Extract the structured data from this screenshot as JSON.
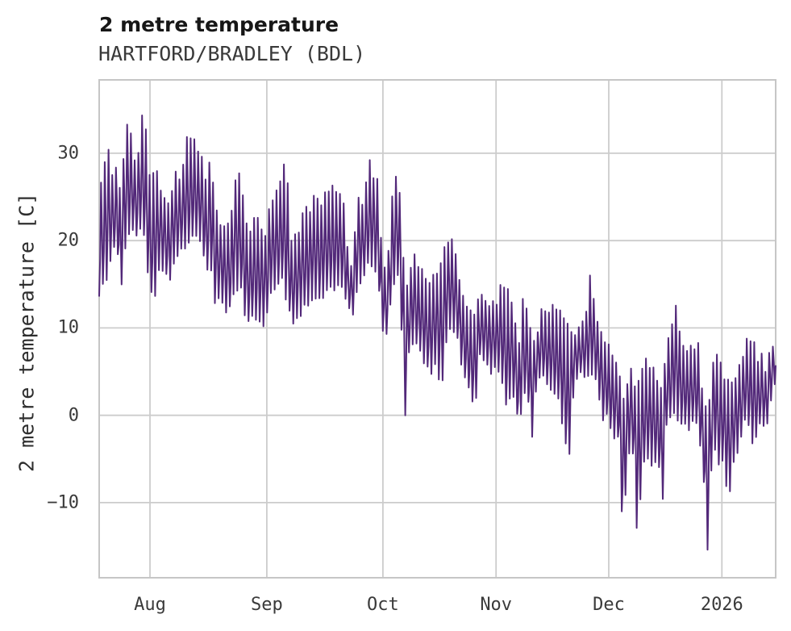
{
  "header": {
    "title": "2 metre temperature",
    "subtitle": "HARTFORD/BRADLEY (BDL)"
  },
  "colors": {
    "line": "#522879",
    "grid": "#cccccc",
    "spine": "#c6c6c6",
    "text": "#3a3a3a",
    "title_text": "#171717",
    "background": "#ffffff"
  },
  "chart_data": {
    "type": "line",
    "title": "2 metre temperature",
    "subtitle": "HARTFORD/BRADLEY (BDL)",
    "xlabel": "",
    "ylabel": "2 metre temperature [C]",
    "x_range_days": 181.2,
    "x_start": "mid-July 2025",
    "x_end": "mid-January 2026",
    "x_ticks": [
      {
        "label": "Aug",
        "day": 13.6
      },
      {
        "label": "Sep",
        "day": 44.9
      },
      {
        "label": "Oct",
        "day": 76.0
      },
      {
        "label": "Nov",
        "day": 106.3
      },
      {
        "label": "Dec",
        "day": 136.5
      },
      {
        "label": "2026",
        "day": 166.8
      }
    ],
    "y_ticks": [
      {
        "label": "−10",
        "value": -10
      },
      {
        "label": "0",
        "value": 0
      },
      {
        "label": "10",
        "value": 10
      },
      {
        "label": "20",
        "value": 20
      },
      {
        "label": "30",
        "value": 30
      }
    ],
    "ylim": [
      -18.6,
      38.4
    ],
    "grid": true,
    "legend_position": "none",
    "diurnal_pattern": [
      -1,
      -0.38,
      1,
      0.08
    ],
    "noise": [
      0.84,
      0.31,
      0.95,
      0.52,
      0.12,
      0.77,
      0.64,
      0.25,
      0.9,
      0.45,
      0.68,
      0.05,
      0.58,
      0.99,
      0.37,
      0.73,
      0.2,
      0.86,
      0.5,
      0.08,
      0.66,
      0.93,
      0.29,
      0.75,
      0.41,
      0.61,
      0.15,
      0.88,
      0.55,
      0.02,
      0.7,
      0.97,
      0.34,
      0.8,
      0.47,
      0.23,
      0.6
    ],
    "series": [
      {
        "name": "2 metre temperature",
        "color": "#522879",
        "points_per_day": 4,
        "envelope_day_low_high": [
          [
            0,
            13.5,
            25
          ],
          [
            1.3,
            14,
            29.5
          ],
          [
            2.6,
            16.5,
            31.2
          ],
          [
            3.8,
            18.5,
            27.5
          ],
          [
            4.9,
            19,
            30
          ],
          [
            5.6,
            12.5,
            27
          ],
          [
            7.0,
            18.5,
            33.4
          ],
          [
            8.1,
            20,
            34.5
          ],
          [
            9.2,
            21,
            31
          ],
          [
            10.2,
            20,
            28
          ],
          [
            11.2,
            20.5,
            36
          ],
          [
            12.2,
            19,
            34.4
          ],
          [
            13.0,
            16,
            30
          ],
          [
            13.9,
            13,
            26
          ],
          [
            14.9,
            13,
            29.2
          ],
          [
            16,
            16.5,
            28.3
          ],
          [
            17.4,
            16.5,
            25.2
          ],
          [
            18.5,
            14.7,
            24.5
          ],
          [
            20,
            17,
            28.3
          ],
          [
            21.6,
            18.5,
            27.5
          ],
          [
            23.4,
            18.5,
            32.5
          ],
          [
            25,
            19.5,
            33
          ],
          [
            26.4,
            20.5,
            31.3
          ],
          [
            28,
            17.5,
            29.8
          ],
          [
            28.9,
            16.5,
            26
          ],
          [
            29.9,
            16,
            33.5
          ],
          [
            31,
            12.8,
            24.3
          ],
          [
            32.5,
            13.5,
            23
          ],
          [
            34,
            11.4,
            21.5
          ],
          [
            35.5,
            11.5,
            23.5
          ],
          [
            36.2,
            14.5,
            28.6
          ],
          [
            38,
            13.5,
            27.5
          ],
          [
            39.5,
            10.2,
            22.5
          ],
          [
            40.7,
            10.5,
            22
          ],
          [
            42,
            10.5,
            24.5
          ],
          [
            43.4,
            9.8,
            23
          ],
          [
            44.5,
            9.6,
            21
          ],
          [
            45.8,
            13.5,
            25.6
          ],
          [
            47.4,
            14,
            26
          ],
          [
            49,
            14.5,
            28.7
          ],
          [
            50.2,
            12.5,
            28.8
          ],
          [
            51.5,
            9.9,
            20
          ],
          [
            53,
            11,
            22
          ],
          [
            54.5,
            11.5,
            23.5
          ],
          [
            56,
            12.5,
            24.5
          ],
          [
            58,
            13,
            25.6
          ],
          [
            59.5,
            12.5,
            25.5
          ],
          [
            61,
            13.5,
            26.5
          ],
          [
            62.6,
            13.8,
            27.2
          ],
          [
            64,
            14.3,
            26.5
          ],
          [
            65.5,
            13.8,
            25
          ],
          [
            66.8,
            12,
            18.5
          ],
          [
            68,
            11.5,
            17.5
          ],
          [
            69.2,
            14.5,
            27
          ],
          [
            70.7,
            15.5,
            24
          ],
          [
            72.2,
            16.5,
            29.5
          ],
          [
            73.4,
            17,
            28.5
          ],
          [
            74.6,
            15.5,
            27
          ],
          [
            75.6,
            9.9,
            20
          ],
          [
            76.9,
            8.8,
            16
          ],
          [
            78.9,
            14.5,
            28.6
          ],
          [
            80.2,
            15.5,
            28.8
          ],
          [
            81,
            9,
            24
          ],
          [
            81.9,
            -1.5,
            14
          ],
          [
            83,
            7,
            17.5
          ],
          [
            84.5,
            8,
            18.8
          ],
          [
            85.8,
            6.6,
            17.5
          ],
          [
            87.2,
            5.5,
            16
          ],
          [
            88.6,
            4,
            15.2
          ],
          [
            90.2,
            6,
            18
          ],
          [
            91.8,
            2,
            17.8
          ],
          [
            93.2,
            9.5,
            21.5
          ],
          [
            94.6,
            9.5,
            20.2
          ],
          [
            95.9,
            8.5,
            18.5
          ],
          [
            97.1,
            5,
            14.5
          ],
          [
            98.3,
            3.2,
            13.4
          ],
          [
            99.5,
            1.7,
            12.7
          ],
          [
            100.8,
            0.5,
            12.6
          ],
          [
            101.9,
            6.5,
            14.6
          ],
          [
            103.3,
            6,
            14
          ],
          [
            104.8,
            4.6,
            13.6
          ],
          [
            106.1,
            5.5,
            13.2
          ],
          [
            107.6,
            4.5,
            15.5
          ],
          [
            109.1,
            -0.5,
            14.4
          ],
          [
            110.3,
            2.5,
            14.8
          ],
          [
            111.5,
            1.5,
            10.5
          ],
          [
            112.4,
            -2.6,
            8.5
          ],
          [
            113.5,
            2.5,
            14
          ],
          [
            114.8,
            1.4,
            13
          ],
          [
            115.9,
            -3.2,
            9.5
          ],
          [
            117.1,
            3,
            9.5
          ],
          [
            118.4,
            4.5,
            12.5
          ],
          [
            119.6,
            3.5,
            12.6
          ],
          [
            120.9,
            2.5,
            12.8
          ],
          [
            122.2,
            1.5,
            13.3
          ],
          [
            123.5,
            0.5,
            12
          ],
          [
            124.8,
            -4.4,
            11.2
          ],
          [
            125.9,
            -5.2,
            10.3
          ],
          [
            127.2,
            3.5,
            10
          ],
          [
            128.4,
            4.5,
            10.2
          ],
          [
            129.6,
            4.5,
            11
          ],
          [
            130.7,
            4,
            13.5
          ],
          [
            131.5,
            4.5,
            16.3
          ],
          [
            132.3,
            4.2,
            14.3
          ],
          [
            133.4,
            3.2,
            11.8
          ],
          [
            134.8,
            -1.4,
            9.5
          ],
          [
            135.9,
            -0.5,
            9
          ],
          [
            137,
            -1.8,
            8.5
          ],
          [
            138,
            -3.2,
            7
          ],
          [
            139.1,
            -3,
            6
          ],
          [
            140.3,
            -14.6,
            3.5
          ],
          [
            141.7,
            -4.5,
            5.4
          ],
          [
            142.9,
            -4,
            5.9
          ],
          [
            144.1,
            -14.2,
            4.2
          ],
          [
            145.4,
            -8.1,
            5.5
          ],
          [
            146.5,
            -4.8,
            6.6
          ],
          [
            147.7,
            -5.8,
            6.8
          ],
          [
            148.8,
            -6.5,
            5
          ],
          [
            149.8,
            -5,
            4.2
          ],
          [
            150.8,
            -11.5,
            3.5
          ],
          [
            151.9,
            -2,
            9.4
          ],
          [
            153,
            -0.5,
            9.8
          ],
          [
            154.3,
            -0.5,
            15
          ],
          [
            155.6,
            -1.8,
            9.5
          ],
          [
            156.8,
            -1.2,
            8.4
          ],
          [
            158,
            -2.2,
            8.3
          ],
          [
            159.3,
            -1,
            8.3
          ],
          [
            160.6,
            -2.5,
            8.3
          ],
          [
            161.5,
            -5.6,
            3
          ],
          [
            162.2,
            -10.1,
            1.5
          ],
          [
            163,
            -16.1,
            0.5
          ],
          [
            164,
            -6,
            5
          ],
          [
            164.8,
            -3.5,
            9.8
          ],
          [
            165.8,
            -6.7,
            6
          ],
          [
            167,
            -5.2,
            6.6
          ],
          [
            168,
            -8.7,
            4.5
          ],
          [
            169,
            -9.1,
            4
          ],
          [
            170.1,
            -5.5,
            5.2
          ],
          [
            171.2,
            -4.6,
            6
          ],
          [
            172.3,
            -2.4,
            7.2
          ],
          [
            173.4,
            -0.5,
            9.4
          ],
          [
            174.4,
            -2.2,
            9.6
          ],
          [
            175.4,
            -5.2,
            9.3
          ],
          [
            176.6,
            -0.8,
            6.3
          ],
          [
            177.6,
            -1.7,
            8.4
          ],
          [
            178.7,
            -1.6,
            5.3
          ],
          [
            179.9,
            1.5,
            8.7
          ],
          [
            181.2,
            4,
            8.6
          ]
        ]
      }
    ]
  }
}
